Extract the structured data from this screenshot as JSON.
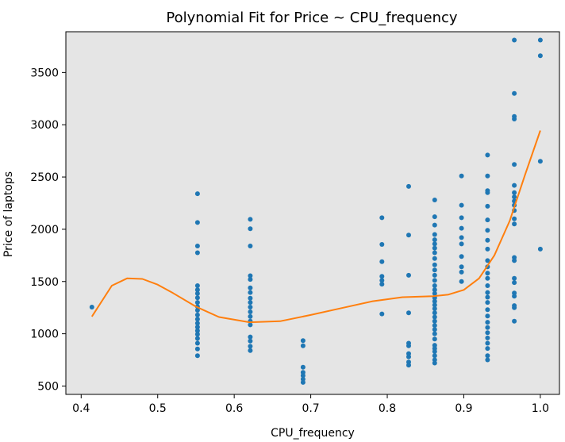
{
  "chart_data": {
    "type": "scatter",
    "title": "Polynomial Fit for Price ~ CPU_frequency",
    "xlabel": "CPU_frequency",
    "ylabel": "Price of laptops",
    "xlim": [
      0.38,
      1.025
    ],
    "ylim": [
      420,
      3890
    ],
    "xticks": [
      0.4,
      0.5,
      0.6,
      0.7,
      0.8,
      0.9,
      1.0
    ],
    "xtick_labels": [
      "0.4",
      "0.5",
      "0.6",
      "0.7",
      "0.8",
      "0.9",
      "1.0"
    ],
    "yticks": [
      500,
      1000,
      1500,
      2000,
      2500,
      3000,
      3500
    ],
    "ytick_labels": [
      "500",
      "1000",
      "1500",
      "2000",
      "2500",
      "3000",
      "3500"
    ],
    "grid": false,
    "background": "#e5e5e5",
    "point_color": "#1f77b4",
    "fit_color": "#ff7f0e",
    "series": [
      {
        "kind": "points",
        "points": [
          [
            0.414,
            1255
          ],
          [
            0.552,
            2340
          ],
          [
            0.552,
            2065
          ],
          [
            0.552,
            1840
          ],
          [
            0.552,
            1775
          ],
          [
            0.552,
            1460
          ],
          [
            0.552,
            1420
          ],
          [
            0.552,
            1385
          ],
          [
            0.552,
            1345
          ],
          [
            0.552,
            1300
          ],
          [
            0.552,
            1260
          ],
          [
            0.552,
            1225
          ],
          [
            0.552,
            1180
          ],
          [
            0.552,
            1140
          ],
          [
            0.552,
            1100
          ],
          [
            0.552,
            1065
          ],
          [
            0.552,
            1030
          ],
          [
            0.552,
            995
          ],
          [
            0.552,
            955
          ],
          [
            0.552,
            910
          ],
          [
            0.552,
            855
          ],
          [
            0.552,
            790
          ],
          [
            0.621,
            2095
          ],
          [
            0.621,
            2005
          ],
          [
            0.621,
            1840
          ],
          [
            0.621,
            1555
          ],
          [
            0.621,
            1520
          ],
          [
            0.621,
            1440
          ],
          [
            0.621,
            1395
          ],
          [
            0.621,
            1340
          ],
          [
            0.621,
            1300
          ],
          [
            0.621,
            1255
          ],
          [
            0.621,
            1210
          ],
          [
            0.621,
            1165
          ],
          [
            0.621,
            1120
          ],
          [
            0.621,
            1085
          ],
          [
            0.621,
            970
          ],
          [
            0.621,
            930
          ],
          [
            0.621,
            880
          ],
          [
            0.621,
            840
          ],
          [
            0.69,
            935
          ],
          [
            0.69,
            885
          ],
          [
            0.69,
            680
          ],
          [
            0.69,
            630
          ],
          [
            0.69,
            600
          ],
          [
            0.69,
            565
          ],
          [
            0.69,
            535
          ],
          [
            0.793,
            2110
          ],
          [
            0.793,
            1855
          ],
          [
            0.793,
            1690
          ],
          [
            0.793,
            1550
          ],
          [
            0.793,
            1510
          ],
          [
            0.793,
            1475
          ],
          [
            0.793,
            1190
          ],
          [
            0.828,
            2410
          ],
          [
            0.828,
            1945
          ],
          [
            0.828,
            1560
          ],
          [
            0.828,
            1200
          ],
          [
            0.828,
            910
          ],
          [
            0.828,
            885
          ],
          [
            0.828,
            810
          ],
          [
            0.828,
            780
          ],
          [
            0.828,
            730
          ],
          [
            0.828,
            700
          ],
          [
            0.862,
            2280
          ],
          [
            0.862,
            2120
          ],
          [
            0.862,
            2040
          ],
          [
            0.862,
            1950
          ],
          [
            0.862,
            1900
          ],
          [
            0.862,
            1860
          ],
          [
            0.862,
            1820
          ],
          [
            0.862,
            1775
          ],
          [
            0.862,
            1720
          ],
          [
            0.862,
            1660
          ],
          [
            0.862,
            1610
          ],
          [
            0.862,
            1560
          ],
          [
            0.862,
            1510
          ],
          [
            0.862,
            1460
          ],
          [
            0.862,
            1420
          ],
          [
            0.862,
            1385
          ],
          [
            0.862,
            1345
          ],
          [
            0.862,
            1310
          ],
          [
            0.862,
            1275
          ],
          [
            0.862,
            1240
          ],
          [
            0.862,
            1200
          ],
          [
            0.862,
            1160
          ],
          [
            0.862,
            1120
          ],
          [
            0.862,
            1080
          ],
          [
            0.862,
            1040
          ],
          [
            0.862,
            1000
          ],
          [
            0.862,
            950
          ],
          [
            0.862,
            890
          ],
          [
            0.862,
            860
          ],
          [
            0.862,
            830
          ],
          [
            0.862,
            790
          ],
          [
            0.862,
            750
          ],
          [
            0.862,
            720
          ],
          [
            0.897,
            2510
          ],
          [
            0.897,
            2230
          ],
          [
            0.897,
            2110
          ],
          [
            0.897,
            2010
          ],
          [
            0.897,
            1920
          ],
          [
            0.897,
            1860
          ],
          [
            0.897,
            1740
          ],
          [
            0.897,
            1640
          ],
          [
            0.897,
            1590
          ],
          [
            0.897,
            1500
          ],
          [
            0.931,
            2710
          ],
          [
            0.931,
            2510
          ],
          [
            0.931,
            2370
          ],
          [
            0.931,
            2350
          ],
          [
            0.931,
            2220
          ],
          [
            0.931,
            2090
          ],
          [
            0.931,
            1990
          ],
          [
            0.931,
            1895
          ],
          [
            0.931,
            1810
          ],
          [
            0.931,
            1700
          ],
          [
            0.931,
            1640
          ],
          [
            0.931,
            1580
          ],
          [
            0.931,
            1530
          ],
          [
            0.931,
            1460
          ],
          [
            0.931,
            1395
          ],
          [
            0.931,
            1350
          ],
          [
            0.931,
            1300
          ],
          [
            0.931,
            1230
          ],
          [
            0.931,
            1170
          ],
          [
            0.931,
            1110
          ],
          [
            0.931,
            1060
          ],
          [
            0.931,
            1010
          ],
          [
            0.931,
            960
          ],
          [
            0.931,
            910
          ],
          [
            0.931,
            860
          ],
          [
            0.931,
            790
          ],
          [
            0.931,
            750
          ],
          [
            0.966,
            3810
          ],
          [
            0.966,
            3300
          ],
          [
            0.966,
            3080
          ],
          [
            0.966,
            3055
          ],
          [
            0.966,
            2620
          ],
          [
            0.966,
            2420
          ],
          [
            0.966,
            2350
          ],
          [
            0.966,
            2310
          ],
          [
            0.966,
            2270
          ],
          [
            0.966,
            2230
          ],
          [
            0.966,
            2180
          ],
          [
            0.966,
            2100
          ],
          [
            0.966,
            2050
          ],
          [
            0.966,
            1730
          ],
          [
            0.966,
            1700
          ],
          [
            0.966,
            1530
          ],
          [
            0.966,
            1490
          ],
          [
            0.966,
            1390
          ],
          [
            0.966,
            1360
          ],
          [
            0.966,
            1270
          ],
          [
            0.966,
            1250
          ],
          [
            0.966,
            1120
          ],
          [
            1.0,
            3810
          ],
          [
            1.0,
            3660
          ],
          [
            1.0,
            2650
          ],
          [
            1.0,
            1810
          ]
        ]
      },
      {
        "kind": "fit",
        "x": [
          0.414,
          0.44,
          0.46,
          0.48,
          0.5,
          0.52,
          0.55,
          0.58,
          0.62,
          0.66,
          0.7,
          0.74,
          0.78,
          0.82,
          0.86,
          0.88,
          0.9,
          0.92,
          0.94,
          0.96,
          0.98,
          1.0
        ],
        "y": [
          1165,
          1460,
          1530,
          1525,
          1470,
          1390,
          1260,
          1160,
          1110,
          1120,
          1180,
          1245,
          1310,
          1350,
          1360,
          1375,
          1420,
          1530,
          1750,
          2080,
          2520,
          2945
        ]
      }
    ]
  }
}
